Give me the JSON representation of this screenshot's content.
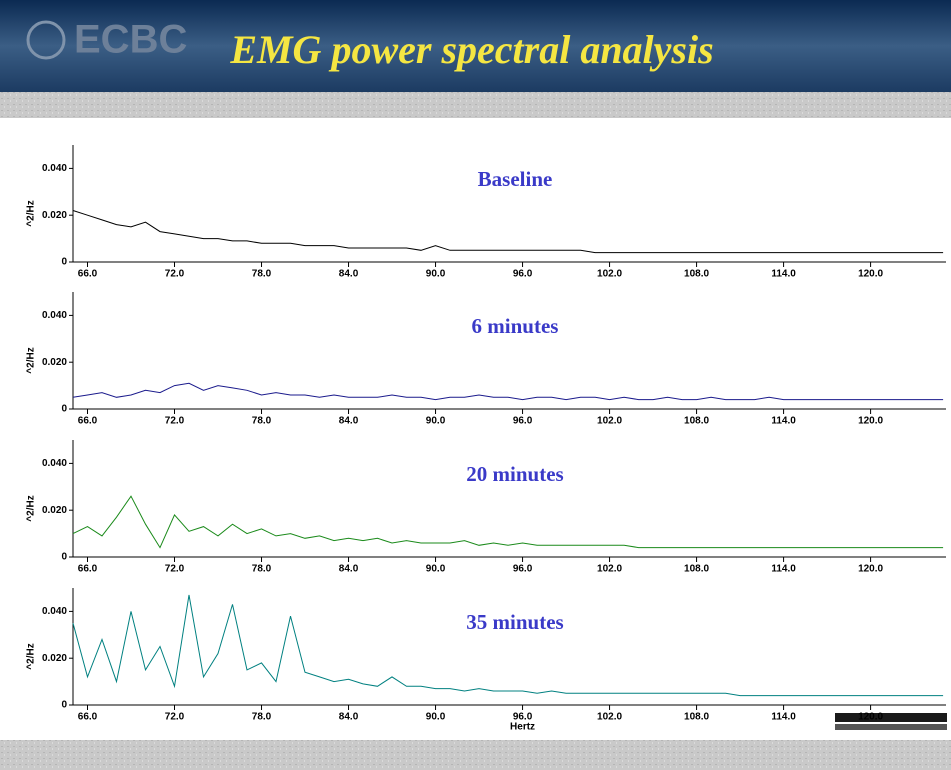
{
  "header": {
    "title": "EMG power spectral analysis",
    "logo": "ECBC"
  },
  "chart_data": [
    {
      "type": "line",
      "annotation": "Baseline",
      "y_label": "^2/Hz",
      "color": "#000000",
      "x": [
        65,
        66,
        67,
        68,
        69,
        70,
        71,
        72,
        73,
        74,
        75,
        76,
        77,
        78,
        79,
        80,
        81,
        82,
        83,
        84,
        85,
        86,
        87,
        88,
        89,
        90,
        91,
        92,
        93,
        94,
        95,
        96,
        97,
        98,
        99,
        100,
        101,
        102,
        103,
        104,
        105,
        106,
        107,
        108,
        109,
        110,
        111,
        112,
        113,
        114,
        115,
        116,
        117,
        118,
        119,
        120,
        121,
        122,
        123,
        124,
        125
      ],
      "values": [
        0.022,
        0.02,
        0.018,
        0.016,
        0.015,
        0.017,
        0.013,
        0.012,
        0.011,
        0.01,
        0.01,
        0.009,
        0.009,
        0.008,
        0.008,
        0.008,
        0.007,
        0.007,
        0.007,
        0.006,
        0.006,
        0.006,
        0.006,
        0.006,
        0.005,
        0.007,
        0.005,
        0.005,
        0.005,
        0.005,
        0.005,
        0.005,
        0.005,
        0.005,
        0.005,
        0.005,
        0.004,
        0.004,
        0.004,
        0.004,
        0.004,
        0.004,
        0.004,
        0.004,
        0.004,
        0.004,
        0.004,
        0.004,
        0.004,
        0.004,
        0.004,
        0.004,
        0.004,
        0.004,
        0.004,
        0.004,
        0.004,
        0.004,
        0.004,
        0.004,
        0.004
      ],
      "xlim": [
        65,
        125.2
      ],
      "ylim": [
        0,
        0.05
      ],
      "xticks": [
        {
          "value": 66,
          "label": "66.0"
        },
        {
          "value": 72,
          "label": "72.0"
        },
        {
          "value": 78,
          "label": "78.0"
        },
        {
          "value": 84,
          "label": "84.0"
        },
        {
          "value": 90,
          "label": "90.0"
        },
        {
          "value": 96,
          "label": "96.0"
        },
        {
          "value": 102,
          "label": "102.0"
        },
        {
          "value": 108,
          "label": "108.0"
        },
        {
          "value": 114,
          "label": "114.0"
        },
        {
          "value": 120,
          "label": "120.0"
        }
      ],
      "yticks": [
        0,
        {
          "value": 0.02,
          "label": "0.020"
        },
        {
          "value": 0.04,
          "label": "0.040"
        }
      ]
    },
    {
      "type": "line",
      "annotation": "6 minutes",
      "y_label": "^2/Hz",
      "color": "#1a1a8c",
      "x": [
        65,
        66,
        67,
        68,
        69,
        70,
        71,
        72,
        73,
        74,
        75,
        76,
        77,
        78,
        79,
        80,
        81,
        82,
        83,
        84,
        85,
        86,
        87,
        88,
        89,
        90,
        91,
        92,
        93,
        94,
        95,
        96,
        97,
        98,
        99,
        100,
        101,
        102,
        103,
        104,
        105,
        106,
        107,
        108,
        109,
        110,
        111,
        112,
        113,
        114,
        115,
        116,
        117,
        118,
        119,
        120,
        121,
        122,
        123,
        124,
        125
      ],
      "values": [
        0.005,
        0.006,
        0.007,
        0.005,
        0.006,
        0.008,
        0.007,
        0.01,
        0.011,
        0.008,
        0.01,
        0.009,
        0.008,
        0.006,
        0.007,
        0.006,
        0.006,
        0.005,
        0.006,
        0.005,
        0.005,
        0.005,
        0.006,
        0.005,
        0.005,
        0.004,
        0.005,
        0.005,
        0.006,
        0.005,
        0.005,
        0.004,
        0.005,
        0.005,
        0.004,
        0.005,
        0.005,
        0.004,
        0.005,
        0.004,
        0.004,
        0.005,
        0.004,
        0.004,
        0.005,
        0.004,
        0.004,
        0.004,
        0.005,
        0.004,
        0.004,
        0.004,
        0.004,
        0.004,
        0.004,
        0.004,
        0.004,
        0.004,
        0.004,
        0.004,
        0.004
      ],
      "xlim": [
        65,
        125.2
      ],
      "ylim": [
        0,
        0.05
      ],
      "xticks": [
        {
          "value": 66,
          "label": "66.0"
        },
        {
          "value": 72,
          "label": "72.0"
        },
        {
          "value": 78,
          "label": "78.0"
        },
        {
          "value": 84,
          "label": "84.0"
        },
        {
          "value": 90,
          "label": "90.0"
        },
        {
          "value": 96,
          "label": "96.0"
        },
        {
          "value": 102,
          "label": "102.0"
        },
        {
          "value": 108,
          "label": "108.0"
        },
        {
          "value": 114,
          "label": "114.0"
        },
        {
          "value": 120,
          "label": "120.0"
        }
      ],
      "yticks": [
        0,
        {
          "value": 0.02,
          "label": "0.020"
        },
        {
          "value": 0.04,
          "label": "0.040"
        }
      ]
    },
    {
      "type": "line",
      "annotation": "20 minutes",
      "y_label": "^2/Hz",
      "color": "#1a8a1a",
      "x": [
        65,
        66,
        67,
        68,
        69,
        70,
        71,
        72,
        73,
        74,
        75,
        76,
        77,
        78,
        79,
        80,
        81,
        82,
        83,
        84,
        85,
        86,
        87,
        88,
        89,
        90,
        91,
        92,
        93,
        94,
        95,
        96,
        97,
        98,
        99,
        100,
        101,
        102,
        103,
        104,
        105,
        106,
        107,
        108,
        109,
        110,
        111,
        112,
        113,
        114,
        115,
        116,
        117,
        118,
        119,
        120,
        121,
        122,
        123,
        124,
        125
      ],
      "values": [
        0.01,
        0.013,
        0.009,
        0.017,
        0.026,
        0.014,
        0.004,
        0.018,
        0.011,
        0.013,
        0.009,
        0.014,
        0.01,
        0.012,
        0.009,
        0.01,
        0.008,
        0.009,
        0.007,
        0.008,
        0.007,
        0.008,
        0.006,
        0.007,
        0.006,
        0.006,
        0.006,
        0.007,
        0.005,
        0.006,
        0.005,
        0.006,
        0.005,
        0.005,
        0.005,
        0.005,
        0.005,
        0.005,
        0.005,
        0.004,
        0.004,
        0.004,
        0.004,
        0.004,
        0.004,
        0.004,
        0.004,
        0.004,
        0.004,
        0.004,
        0.004,
        0.004,
        0.004,
        0.004,
        0.004,
        0.004,
        0.004,
        0.004,
        0.004,
        0.004,
        0.004
      ],
      "xlim": [
        65,
        125.2
      ],
      "ylim": [
        0,
        0.05
      ],
      "xticks": [
        {
          "value": 66,
          "label": "66.0"
        },
        {
          "value": 72,
          "label": "72.0"
        },
        {
          "value": 78,
          "label": "78.0"
        },
        {
          "value": 84,
          "label": "84.0"
        },
        {
          "value": 90,
          "label": "90.0"
        },
        {
          "value": 96,
          "label": "96.0"
        },
        {
          "value": 102,
          "label": "102.0"
        },
        {
          "value": 108,
          "label": "108.0"
        },
        {
          "value": 114,
          "label": "114.0"
        },
        {
          "value": 120,
          "label": "120.0"
        }
      ],
      "yticks": [
        0,
        {
          "value": 0.02,
          "label": "0.020"
        },
        {
          "value": 0.04,
          "label": "0.040"
        }
      ]
    },
    {
      "type": "line",
      "annotation": "35 minutes",
      "y_label": "^2/Hz",
      "x_label": "Hertz",
      "color": "#008080",
      "x": [
        65,
        66,
        67,
        68,
        69,
        70,
        71,
        72,
        73,
        74,
        75,
        76,
        77,
        78,
        79,
        80,
        81,
        82,
        83,
        84,
        85,
        86,
        87,
        88,
        89,
        90,
        91,
        92,
        93,
        94,
        95,
        96,
        97,
        98,
        99,
        100,
        101,
        102,
        103,
        104,
        105,
        106,
        107,
        108,
        109,
        110,
        111,
        112,
        113,
        114,
        115,
        116,
        117,
        118,
        119,
        120,
        121,
        122,
        123,
        124,
        125
      ],
      "values": [
        0.035,
        0.012,
        0.028,
        0.01,
        0.04,
        0.015,
        0.025,
        0.008,
        0.047,
        0.012,
        0.022,
        0.043,
        0.015,
        0.018,
        0.01,
        0.038,
        0.014,
        0.012,
        0.01,
        0.011,
        0.009,
        0.008,
        0.012,
        0.008,
        0.008,
        0.007,
        0.007,
        0.006,
        0.007,
        0.006,
        0.006,
        0.006,
        0.005,
        0.006,
        0.005,
        0.005,
        0.005,
        0.005,
        0.005,
        0.005,
        0.005,
        0.005,
        0.005,
        0.005,
        0.005,
        0.005,
        0.004,
        0.004,
        0.004,
        0.004,
        0.004,
        0.004,
        0.004,
        0.004,
        0.004,
        0.004,
        0.004,
        0.004,
        0.004,
        0.004,
        0.004
      ],
      "xlim": [
        65,
        125.2
      ],
      "ylim": [
        0,
        0.05
      ],
      "xticks": [
        {
          "value": 66,
          "label": "66.0"
        },
        {
          "value": 72,
          "label": "72.0"
        },
        {
          "value": 78,
          "label": "78.0"
        },
        {
          "value": 84,
          "label": "84.0"
        },
        {
          "value": 90,
          "label": "90.0"
        },
        {
          "value": 96,
          "label": "96.0"
        },
        {
          "value": 102,
          "label": "102.0"
        },
        {
          "value": 108,
          "label": "108.0"
        },
        {
          "value": 114,
          "label": "114.0"
        },
        {
          "value": 120,
          "label": "120.0"
        }
      ],
      "yticks": [
        0,
        {
          "value": 0.02,
          "label": "0.020"
        },
        {
          "value": 0.04,
          "label": "0.040"
        }
      ]
    }
  ]
}
